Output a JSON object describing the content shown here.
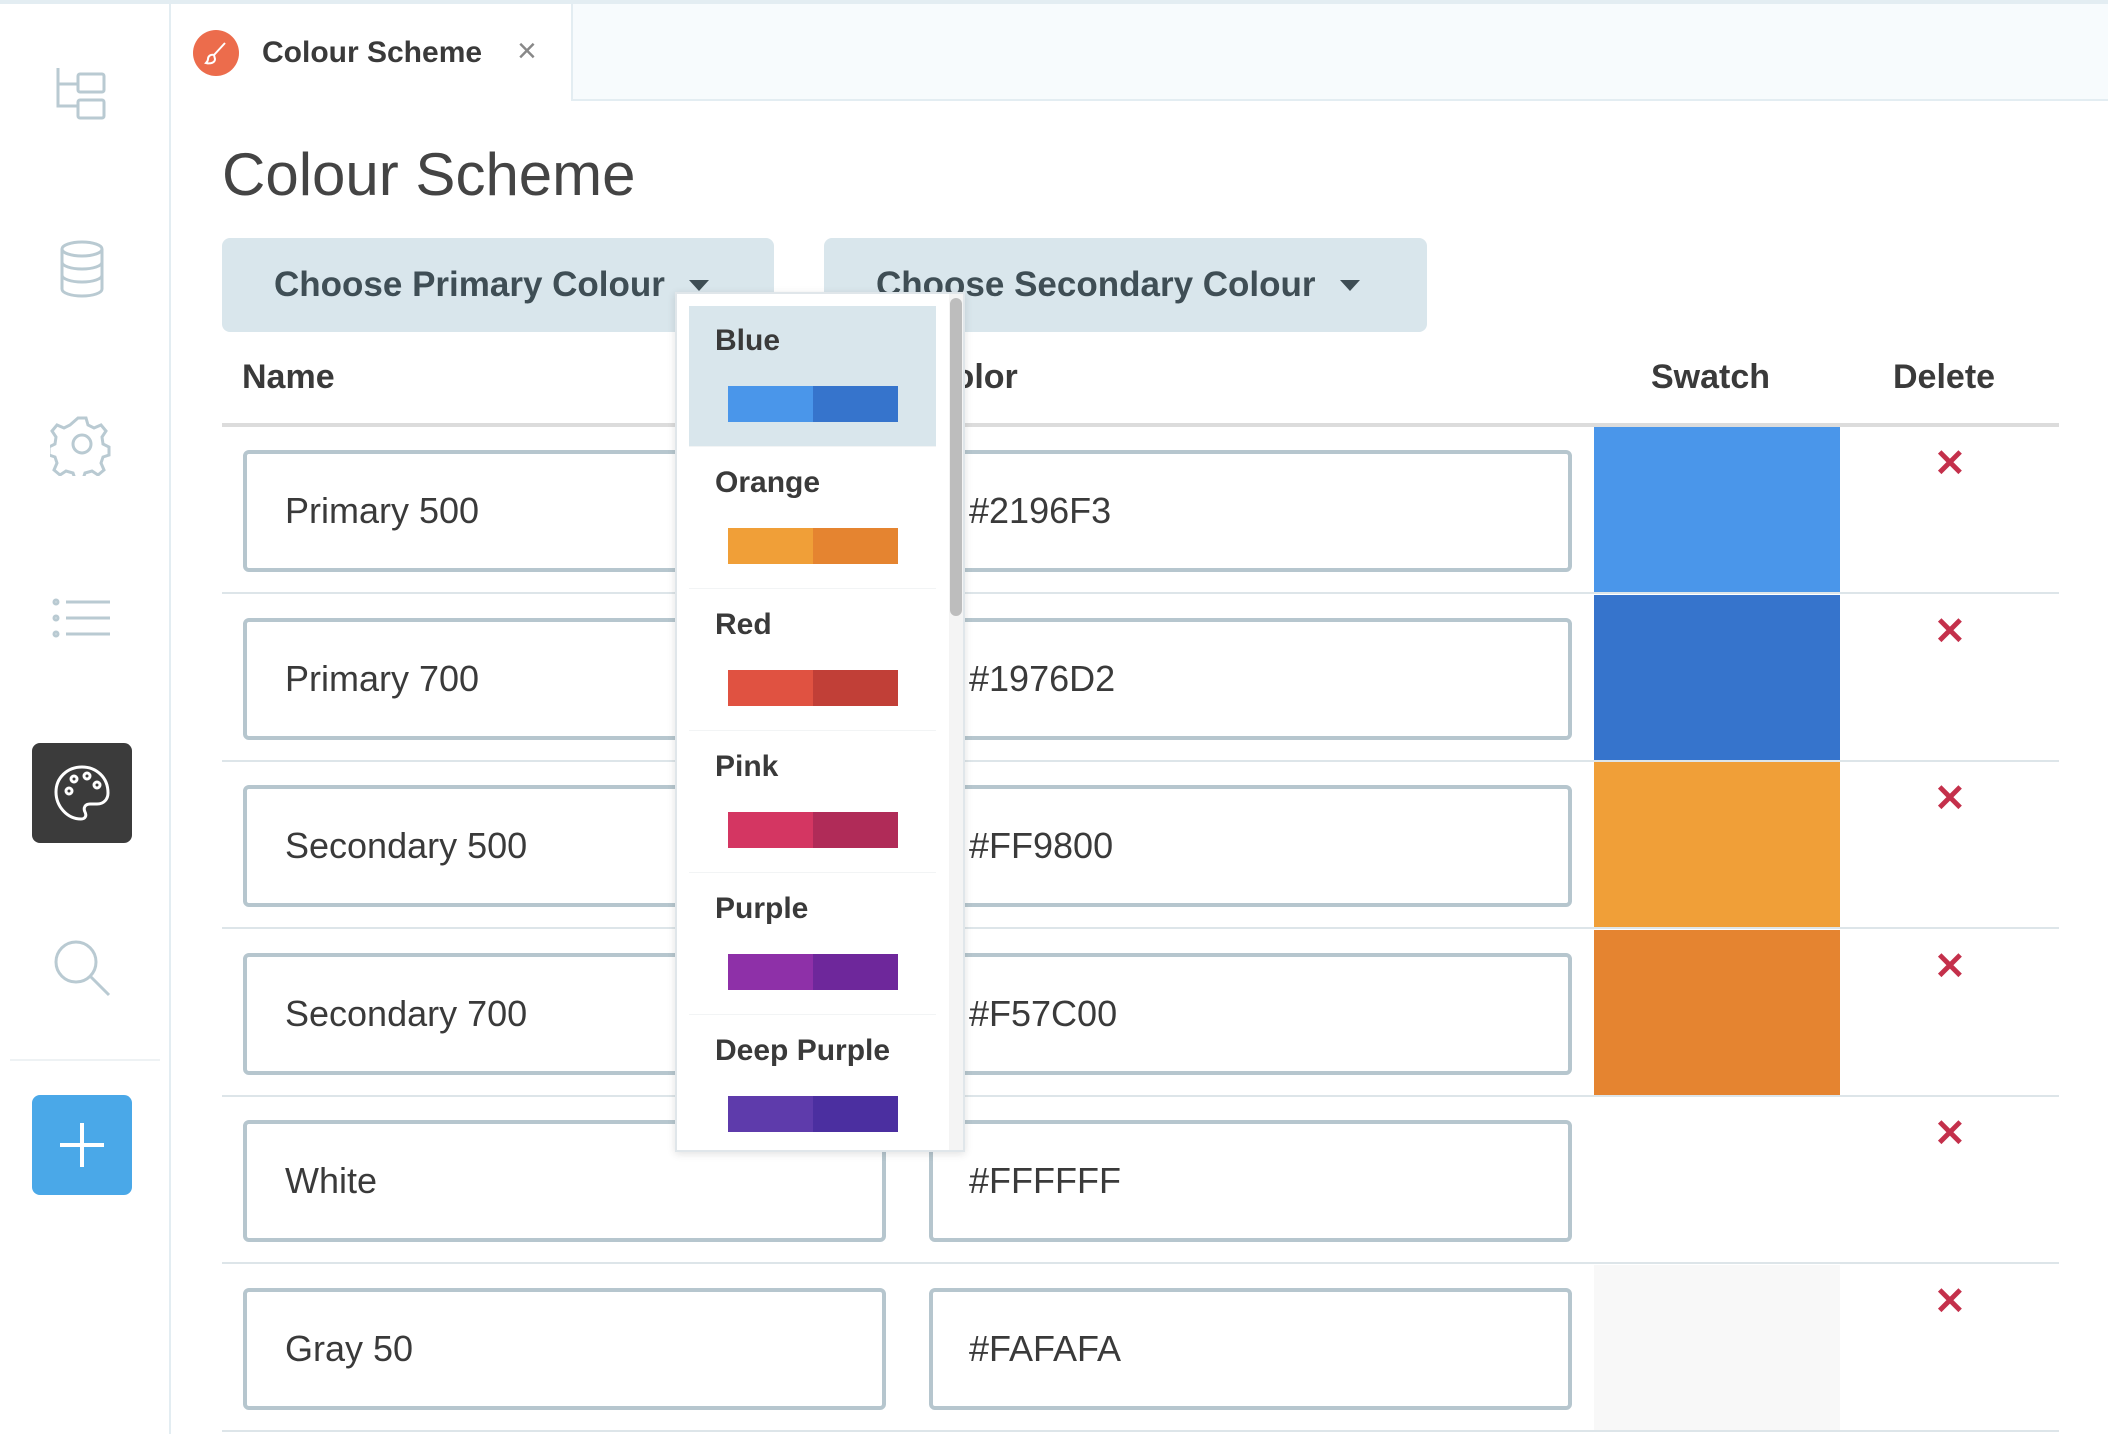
{
  "tab": {
    "label": "Colour Scheme",
    "icon": "paintbrush-icon",
    "close": "×",
    "icon_color": "#ec6c4c"
  },
  "page": {
    "title": "Colour Scheme"
  },
  "buttons": {
    "primary": "Choose Primary Colour",
    "secondary": "Choose Secondary Colour"
  },
  "table": {
    "headers": {
      "name": "Name",
      "color": "Color",
      "swatch": "Swatch",
      "delete": "Delete"
    },
    "rows": [
      {
        "name": "Primary 500",
        "code": "#2196F3",
        "swatch": "#4a96ea"
      },
      {
        "name": "Primary 700",
        "code": "#1976D2",
        "swatch": "#3674cc"
      },
      {
        "name": "Secondary 500",
        "code": "#FF9800",
        "swatch": "#f09f38"
      },
      {
        "name": "Secondary 700",
        "code": "#F57C00",
        "swatch": "#e58430"
      },
      {
        "name": "White",
        "code": "#FFFFFF",
        "swatch": "#ffffff"
      },
      {
        "name": "Gray 50",
        "code": "#FAFAFA",
        "swatch": "#f8f8f8"
      }
    ],
    "delete_glyph": "✕"
  },
  "dropdown": {
    "items": [
      {
        "label": "Blue",
        "c1": "#4a96ea",
        "c2": "#3674cc",
        "selected": true
      },
      {
        "label": "Orange",
        "c1": "#f09f38",
        "c2": "#e58430"
      },
      {
        "label": "Red",
        "c1": "#e05241",
        "c2": "#c13f37"
      },
      {
        "label": "Pink",
        "c1": "#d43662",
        "c2": "#b02b58"
      },
      {
        "label": "Purple",
        "c1": "#8e30a8",
        "c2": "#6e279b"
      },
      {
        "label": "Deep Purple",
        "c1": "#5e3bab",
        "c2": "#4b2fa0"
      }
    ]
  },
  "sidebar": {
    "items": [
      "folder-tree-icon",
      "database-icon",
      "gear-icon",
      "list-icon",
      "palette-icon",
      "search-icon",
      "plus-icon"
    ],
    "active": "palette-icon"
  }
}
